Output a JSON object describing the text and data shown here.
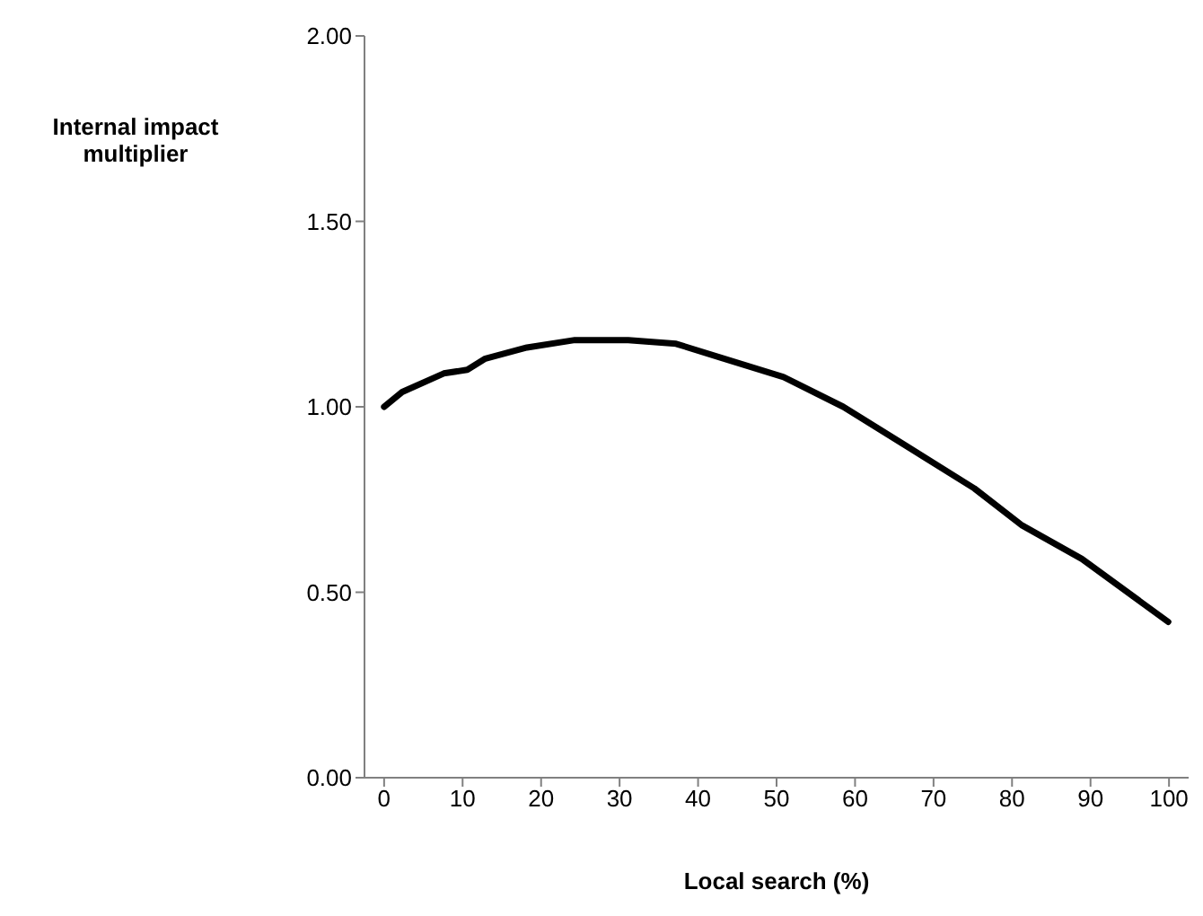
{
  "chart_data": {
    "type": "line",
    "xlabel": "Local search (%)",
    "ylabel": "Internal impact multiplier",
    "x": [
      0,
      2.3,
      7.6,
      10.6,
      12.9,
      18.2,
      24.3,
      31.1,
      37.2,
      43.3,
      50.9,
      58.5,
      66.1,
      75.2,
      81.3,
      88.9,
      99.9
    ],
    "series": [
      {
        "color": "#000000",
        "values": [
          1.0,
          1.04,
          1.09,
          1.1,
          1.13,
          1.16,
          1.18,
          1.18,
          1.17,
          1.13,
          1.08,
          1.0,
          0.9,
          0.78,
          0.68,
          0.59,
          0.42
        ]
      }
    ],
    "xlim": [
      -2.5,
      102.5
    ],
    "xticks": [
      0,
      10,
      20,
      30,
      40,
      50,
      60,
      70,
      80,
      90,
      100
    ],
    "ylim": [
      0,
      2
    ],
    "yticks": [
      {
        "value": 0,
        "label": "0.00"
      },
      {
        "value": 0.5,
        "label": "0.50"
      },
      {
        "value": 1,
        "label": "1.00"
      },
      {
        "value": 1.5,
        "label": "1.50"
      },
      {
        "value": 2,
        "label": "2.00"
      }
    ],
    "grid": false,
    "legend": false,
    "marker": "none",
    "line_style": "solid"
  }
}
